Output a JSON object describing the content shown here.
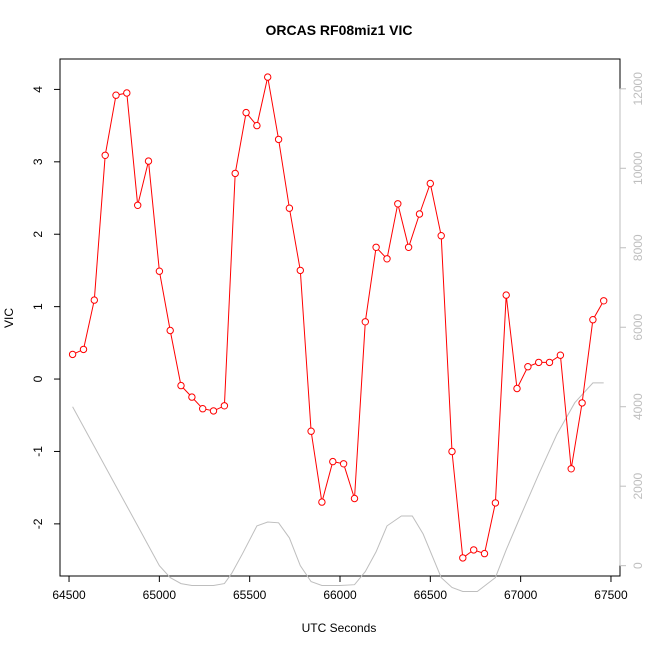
{
  "chart_data": {
    "type": "line",
    "title": "ORCAS RF08miz1 VIC",
    "xlabel": "UTC Seconds",
    "ylabel": "VIC",
    "xlim": [
      64450,
      67550
    ],
    "ylim": [
      -2.72,
      4.42
    ],
    "y2lim": [
      -260,
      12750
    ],
    "x_ticks": [
      64500,
      65000,
      65500,
      66000,
      66500,
      67000,
      67500
    ],
    "x_tick_labels": [
      "64500",
      "65000",
      "65500",
      "66000",
      "66500",
      "67000",
      "67500"
    ],
    "y_ticks": [
      -2,
      -1,
      0,
      1,
      2,
      3,
      4
    ],
    "y_tick_labels": [
      "-2",
      "-1",
      "0",
      "1",
      "2",
      "3",
      "4"
    ],
    "y2_ticks": [
      0,
      2000,
      4000,
      6000,
      8000,
      10000,
      12000
    ],
    "y2_tick_labels": [
      "0",
      "2000",
      "4000",
      "6000",
      "8000",
      "10000",
      "12000"
    ],
    "colors": {
      "vic": "#ff0000",
      "altitude": "#bebebe",
      "axes": "#000000"
    },
    "grid": false,
    "series": [
      {
        "axis": "left",
        "style": "line+open-circles",
        "x": [
          64520,
          64580,
          64640,
          64700,
          64760,
          64820,
          64880,
          64940,
          65000,
          65060,
          65120,
          65180,
          65240,
          65300,
          65360,
          65420,
          65480,
          65540,
          65600,
          65660,
          65720,
          65780,
          65840,
          65900,
          65960,
          66020,
          66080,
          66140,
          66200,
          66260,
          66320,
          66380,
          66440,
          66500,
          66560,
          66620,
          66680,
          66740,
          66800,
          66860,
          66920,
          66980,
          67040,
          67100,
          67160,
          67220,
          67280,
          67340,
          67400,
          67460
        ],
        "y": [
          0.34,
          0.41,
          1.09,
          3.09,
          3.92,
          3.95,
          2.4,
          3.01,
          1.49,
          0.67,
          -0.09,
          -0.25,
          -0.41,
          -0.44,
          -0.37,
          2.84,
          3.68,
          3.5,
          4.17,
          3.31,
          2.36,
          1.5,
          -0.72,
          -1.7,
          -1.14,
          -1.17,
          -1.65,
          0.79,
          1.82,
          1.66,
          2.42,
          1.82,
          2.28,
          2.7,
          1.98,
          -1.0,
          -2.47,
          -2.36,
          -2.41,
          -1.71,
          1.16,
          -0.13,
          0.17,
          0.23,
          0.23,
          0.33,
          -1.24,
          -0.33,
          0.82,
          1.08
        ]
      },
      {
        "axis": "right",
        "style": "line",
        "x": [
          64520,
          64640,
          64760,
          64880,
          64940,
          65000,
          65060,
          65120,
          65180,
          65300,
          65360,
          65400,
          65460,
          65540,
          65600,
          65660,
          65720,
          65780,
          65840,
          65900,
          66000,
          66080,
          66140,
          66200,
          66260,
          66340,
          66400,
          66460,
          66560,
          66620,
          66680,
          66760,
          66860,
          66920,
          67000,
          67100,
          67200,
          67300,
          67400,
          67460
        ],
        "y": [
          4000,
          3000,
          2000,
          1000,
          500,
          0,
          -300,
          -450,
          -500,
          -500,
          -450,
          -200,
          300,
          1000,
          1100,
          1080,
          700,
          0,
          -400,
          -500,
          -500,
          -480,
          -150,
          350,
          1000,
          1250,
          1250,
          800,
          -300,
          -550,
          -650,
          -650,
          -300,
          400,
          1250,
          2300,
          3300,
          4100,
          4600,
          4600
        ]
      }
    ]
  }
}
